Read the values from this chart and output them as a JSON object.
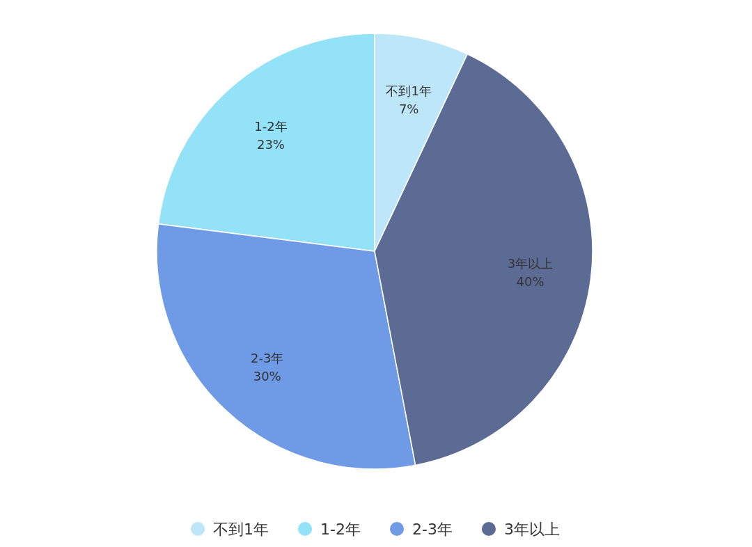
{
  "chart_data": {
    "type": "pie",
    "categories": [
      "不到1年",
      "1-2年",
      "2-3年",
      "3年以上"
    ],
    "values": [
      7,
      23,
      30,
      40
    ],
    "colors": [
      "#bde6f9",
      "#93e2f8",
      "#6f9be6",
      "#5b6b93"
    ],
    "value_labels": [
      "7%",
      "23%",
      "30%",
      "40%"
    ],
    "legend": "bottom"
  }
}
